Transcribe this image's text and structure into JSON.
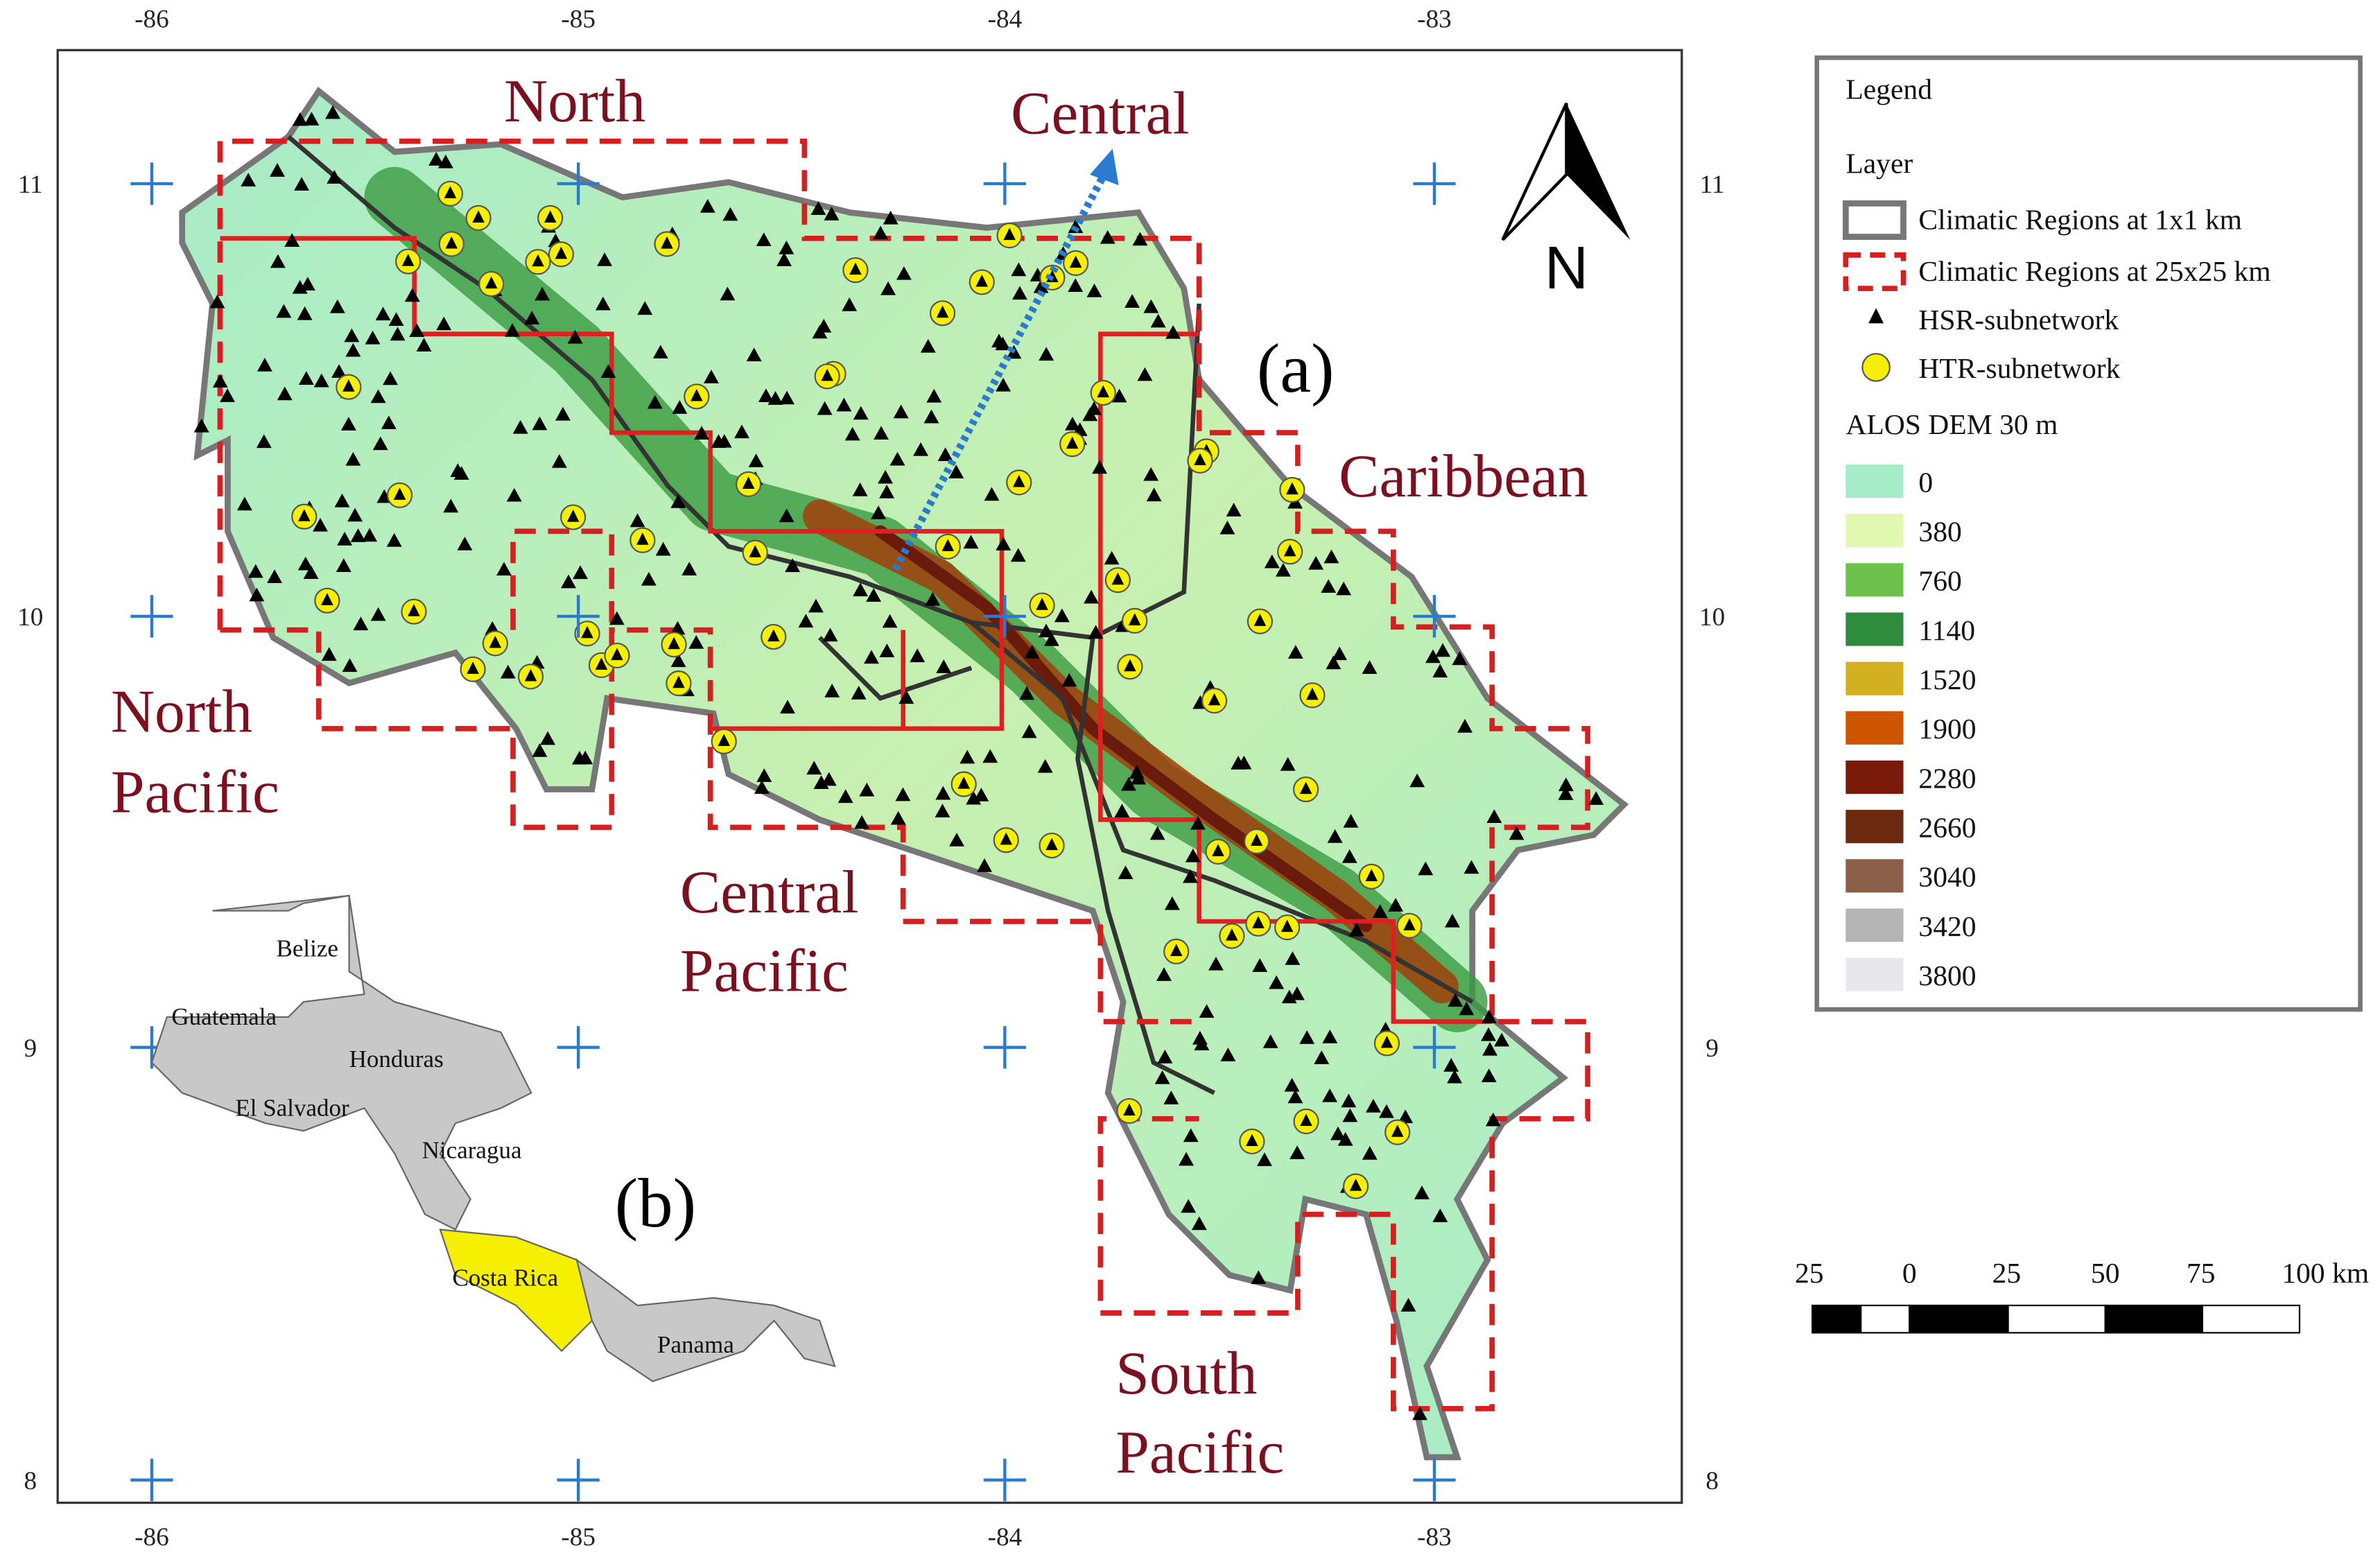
{
  "map": {
    "ticks": {
      "top": [
        "-86",
        "-85",
        "-84",
        "-83"
      ],
      "bottom": [
        "-86",
        "-85",
        "-84",
        "-83"
      ],
      "left": [
        "11",
        "10",
        "9",
        "8"
      ],
      "right": [
        "11",
        "10",
        "9",
        "8"
      ]
    },
    "regions": [
      "North",
      "Central",
      "Caribbean",
      "North",
      "Pacific",
      "Central",
      "Pacific",
      "South",
      "Pacific"
    ],
    "panel_a": "(a)",
    "panel_b": "(b)",
    "north": "N",
    "inset_countries": [
      "Belize",
      "Guatemala",
      "Honduras",
      "El Salvador",
      "Nicaragua",
      "Costa Rica",
      "Panama"
    ],
    "legend": {
      "title": "Legend",
      "layer": "Layer",
      "entries": [
        "Climatic Regions at 1x1 km",
        "Climatic Regions at 25x25 km",
        "HSR-subnetwork",
        "HTR-subnetwork"
      ],
      "dem_title": "ALOS DEM 30 m",
      "dem": [
        "0",
        "380",
        "760",
        "1140",
        "1520",
        "1900",
        "2280",
        "2660",
        "3040",
        "3420",
        "3800"
      ]
    },
    "scale": [
      "25",
      "0",
      "25",
      "50",
      "75",
      "100 km"
    ]
  }
}
